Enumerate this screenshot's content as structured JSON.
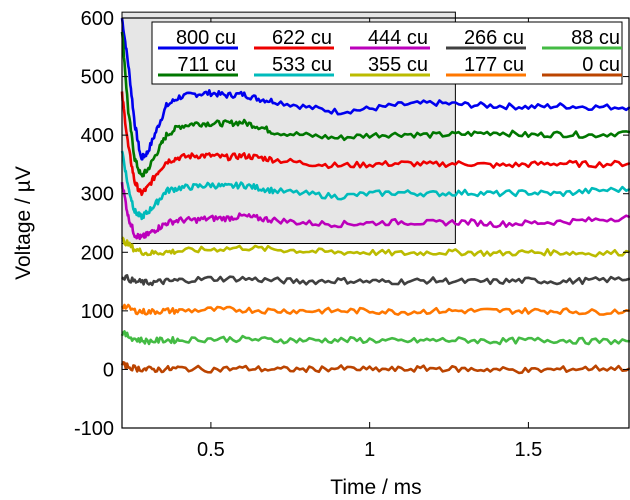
{
  "chart_data": {
    "type": "line",
    "title": "",
    "xlabel": "Time / ms",
    "ylabel": "Voltage / µV",
    "xlim": [
      0.22,
      1.82
    ],
    "ylim": [
      -100,
      600
    ],
    "xticks": [
      0.5,
      1,
      1.5
    ],
    "xtick_labels": [
      "0.5",
      "1",
      "1.5"
    ],
    "yticks": [
      -100,
      0,
      100,
      200,
      300,
      400,
      500,
      600
    ],
    "ytick_labels": [
      "-100",
      "0",
      "100",
      "200",
      "300",
      "400",
      "500",
      "600"
    ],
    "grid": false,
    "legend_position": "top",
    "highlight_region": {
      "x": [
        0.22,
        1.27
      ],
      "y": [
        215,
        610
      ],
      "color": "#e6e6e6"
    },
    "series": [
      {
        "name": "800 cu",
        "color": "#0000ee",
        "x": [
          0.22,
          0.24,
          0.26,
          0.28,
          0.3,
          0.33,
          0.36,
          0.4,
          0.45,
          0.5,
          0.55,
          0.6,
          0.65,
          0.7,
          0.8,
          0.9,
          1.0,
          1.1,
          1.2,
          1.3,
          1.4,
          1.5,
          1.6,
          1.7,
          1.82
        ],
        "y": [
          600,
          520,
          420,
          360,
          370,
          410,
          450,
          465,
          470,
          472,
          468,
          470,
          462,
          458,
          448,
          440,
          445,
          452,
          455,
          452,
          450,
          448,
          450,
          448,
          448
        ]
      },
      {
        "name": "711 cu",
        "color": "#007700",
        "x": [
          0.22,
          0.24,
          0.26,
          0.28,
          0.3,
          0.33,
          0.36,
          0.4,
          0.45,
          0.5,
          0.55,
          0.6,
          0.65,
          0.7,
          0.8,
          0.9,
          1.0,
          1.1,
          1.2,
          1.3,
          1.4,
          1.5,
          1.6,
          1.7,
          1.82
        ],
        "y": [
          580,
          440,
          360,
          330,
          340,
          370,
          400,
          415,
          420,
          420,
          420,
          422,
          415,
          405,
          400,
          395,
          400,
          402,
          400,
          402,
          405,
          400,
          402,
          400,
          405
        ]
      },
      {
        "name": "622 cu",
        "color": "#ee0000",
        "x": [
          0.22,
          0.24,
          0.26,
          0.28,
          0.3,
          0.33,
          0.36,
          0.4,
          0.45,
          0.5,
          0.55,
          0.6,
          0.65,
          0.7,
          0.8,
          0.9,
          1.0,
          1.1,
          1.2,
          1.3,
          1.4,
          1.5,
          1.6,
          1.7,
          1.82
        ],
        "y": [
          470,
          380,
          320,
          300,
          310,
          335,
          355,
          362,
          365,
          365,
          362,
          365,
          362,
          358,
          352,
          348,
          350,
          352,
          350,
          352,
          348,
          350,
          352,
          350,
          352
        ]
      },
      {
        "name": "533 cu",
        "color": "#00bbbb",
        "x": [
          0.22,
          0.24,
          0.26,
          0.28,
          0.3,
          0.33,
          0.36,
          0.4,
          0.45,
          0.5,
          0.55,
          0.6,
          0.65,
          0.7,
          0.8,
          0.9,
          1.0,
          1.1,
          1.2,
          1.3,
          1.4,
          1.5,
          1.6,
          1.7,
          1.82
        ],
        "y": [
          375,
          310,
          270,
          260,
          268,
          285,
          305,
          310,
          312,
          315,
          312,
          315,
          310,
          305,
          300,
          295,
          300,
          302,
          300,
          302,
          300,
          302,
          300,
          305,
          308
        ]
      },
      {
        "name": "444 cu",
        "color": "#bb00bb",
        "x": [
          0.22,
          0.24,
          0.26,
          0.28,
          0.3,
          0.33,
          0.36,
          0.4,
          0.45,
          0.5,
          0.55,
          0.6,
          0.65,
          0.7,
          0.8,
          0.9,
          1.0,
          1.1,
          1.2,
          1.3,
          1.4,
          1.5,
          1.6,
          1.7,
          1.82
        ],
        "y": [
          320,
          260,
          230,
          225,
          230,
          240,
          250,
          255,
          255,
          258,
          258,
          262,
          258,
          255,
          250,
          248,
          250,
          252,
          250,
          252,
          248,
          250,
          252,
          255,
          260
        ]
      },
      {
        "name": "355 cu",
        "color": "#bbbb00",
        "x": [
          0.22,
          0.26,
          0.3,
          0.35,
          0.4,
          0.5,
          0.6,
          0.7,
          0.8,
          0.9,
          1.0,
          1.1,
          1.2,
          1.3,
          1.4,
          1.5,
          1.6,
          1.7,
          1.82
        ],
        "y": [
          222,
          205,
          198,
          200,
          202,
          205,
          208,
          205,
          202,
          200,
          200,
          198,
          200,
          200,
          198,
          200,
          200,
          198,
          200
        ]
      },
      {
        "name": "266 cu",
        "color": "#404040",
        "x": [
          0.22,
          0.26,
          0.3,
          0.35,
          0.4,
          0.5,
          0.6,
          0.7,
          0.8,
          0.9,
          1.0,
          1.1,
          1.2,
          1.3,
          1.4,
          1.5,
          1.6,
          1.7,
          1.82
        ],
        "y": [
          160,
          150,
          148,
          150,
          152,
          155,
          155,
          152,
          150,
          152,
          150,
          150,
          152,
          150,
          150,
          152,
          150,
          152,
          155
        ]
      },
      {
        "name": "177 cu",
        "color": "#ff7700",
        "x": [
          0.22,
          0.26,
          0.3,
          0.35,
          0.4,
          0.5,
          0.6,
          0.7,
          0.8,
          0.9,
          1.0,
          1.1,
          1.2,
          1.3,
          1.4,
          1.5,
          1.6,
          1.7,
          1.82
        ],
        "y": [
          110,
          100,
          98,
          100,
          100,
          102,
          102,
          100,
          100,
          100,
          100,
          98,
          100,
          100,
          100,
          100,
          100,
          98,
          100
        ]
      },
      {
        "name": "88 cu",
        "color": "#44bb44",
        "x": [
          0.22,
          0.26,
          0.3,
          0.35,
          0.4,
          0.5,
          0.6,
          0.7,
          0.8,
          0.9,
          1.0,
          1.1,
          1.2,
          1.3,
          1.4,
          1.5,
          1.6,
          1.7,
          1.82
        ],
        "y": [
          62,
          52,
          48,
          50,
          50,
          52,
          52,
          50,
          50,
          50,
          50,
          48,
          50,
          50,
          48,
          50,
          50,
          48,
          48
        ]
      },
      {
        "name": "0 cu",
        "color": "#bb4400",
        "x": [
          0.22,
          0.26,
          0.3,
          0.35,
          0.4,
          0.5,
          0.6,
          0.7,
          0.8,
          0.9,
          1.0,
          1.1,
          1.2,
          1.3,
          1.4,
          1.5,
          1.6,
          1.7,
          1.82
        ],
        "y": [
          8,
          2,
          0,
          0,
          2,
          0,
          2,
          0,
          0,
          2,
          0,
          0,
          2,
          0,
          0,
          -2,
          0,
          2,
          2
        ]
      }
    ],
    "legend_order": [
      "800 cu",
      "622 cu",
      "444 cu",
      "266 cu",
      "88 cu",
      "711 cu",
      "533 cu",
      "355 cu",
      "177 cu",
      "0 cu"
    ]
  }
}
